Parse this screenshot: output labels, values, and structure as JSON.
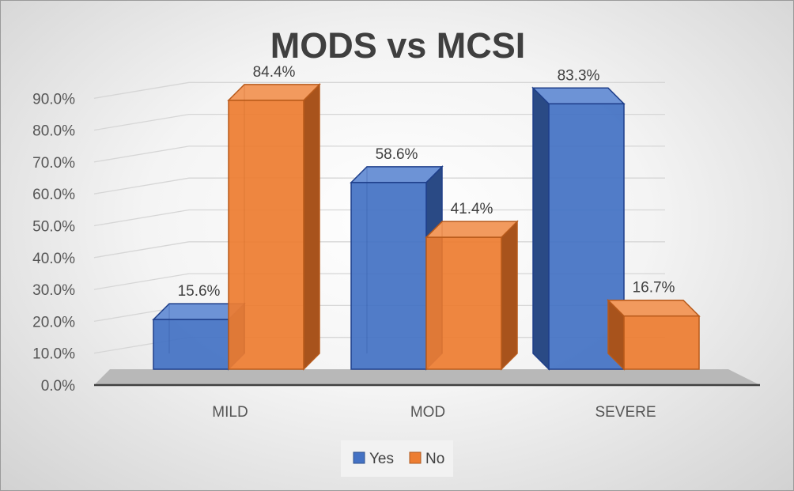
{
  "chart_data": {
    "type": "bar",
    "title": "MODS vs MCSI",
    "categories": [
      "MILD",
      "MOD",
      "SEVERE"
    ],
    "series": [
      {
        "name": "Yes",
        "values": [
          15.6,
          58.6,
          83.3
        ],
        "labels": [
          "15.6%",
          "58.6%",
          "83.3%"
        ]
      },
      {
        "name": "No",
        "values": [
          84.4,
          41.4,
          16.7
        ],
        "labels": [
          "84.4%",
          "41.4%",
          "16.7%"
        ]
      }
    ],
    "yticks": [
      "0.0%",
      "10.0%",
      "20.0%",
      "30.0%",
      "40.0%",
      "50.0%",
      "60.0%",
      "70.0%",
      "80.0%",
      "90.0%"
    ],
    "ylim": [
      0,
      90
    ],
    "xlabel": "",
    "ylabel": "",
    "grid": true,
    "legend_position": "bottom",
    "style": "3d-clustered-column"
  },
  "colors": {
    "yes_front": "#4472c4",
    "yes_side": "#2a4a85",
    "yes_top": "#6d93d6",
    "no_front": "#ed7d31",
    "no_side": "#a8531c",
    "no_top": "#f29a5e",
    "gridline": "#d6d6d6",
    "floor": "#b8b8b8"
  }
}
